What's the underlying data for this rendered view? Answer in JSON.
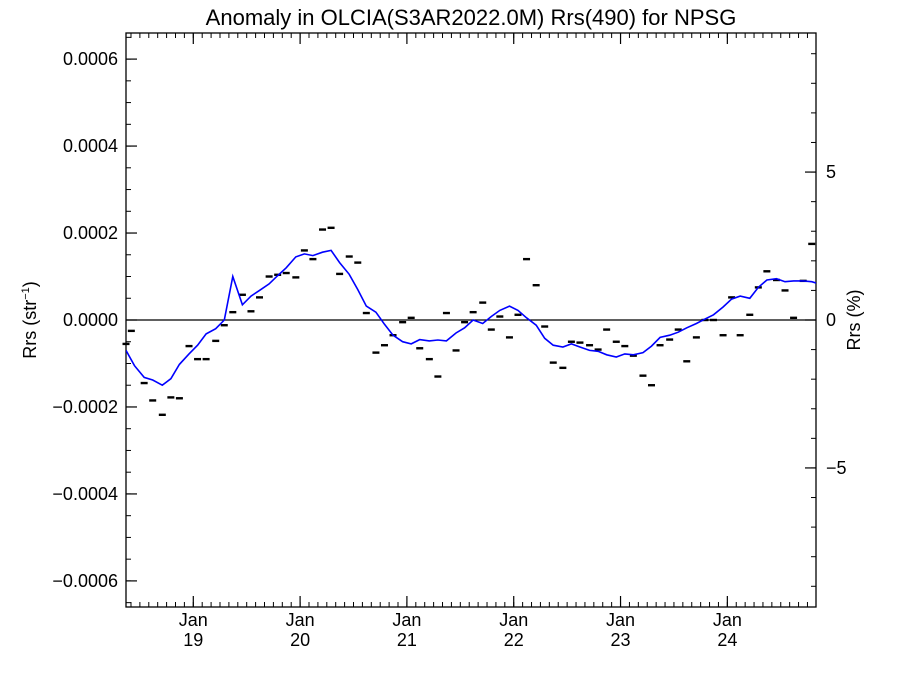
{
  "chart_data": {
    "type": "line",
    "title": "Anomaly in OLCIA(S3AR2022.0M) Rrs(490) for NPSG",
    "ylabel_left": {
      "base": "Rrs (str",
      "sup": "−1",
      "close": ")"
    },
    "ylabel_right": "Rrs (%)",
    "xlim": [
      2018.37,
      2024.83
    ],
    "ylim": [
      -0.00066,
      0.00066
    ],
    "y2lim": [
      -9.7,
      9.7
    ],
    "grid": false,
    "zero_line": true,
    "colors": {
      "line": "#0000ff",
      "points": "#000000",
      "axes": "#000000"
    },
    "x_ticks": [
      {
        "x": 2019.0,
        "top": "Jan",
        "bottom": "19"
      },
      {
        "x": 2020.0,
        "top": "Jan",
        "bottom": "20"
      },
      {
        "x": 2021.0,
        "top": "Jan",
        "bottom": "21"
      },
      {
        "x": 2022.0,
        "top": "Jan",
        "bottom": "22"
      },
      {
        "x": 2023.0,
        "top": "Jan",
        "bottom": "23"
      },
      {
        "x": 2024.0,
        "top": "Jan",
        "bottom": "24"
      }
    ],
    "y_ticks_left": [
      {
        "value": 0.0006,
        "label": "0.0006"
      },
      {
        "value": 0.0004,
        "label": "0.0004"
      },
      {
        "value": 0.0002,
        "label": "0.0002"
      },
      {
        "value": 0.0,
        "label": "0.0000"
      },
      {
        "value": -0.0002,
        "label": "−0.0002"
      },
      {
        "value": -0.0004,
        "label": "−0.0004"
      },
      {
        "value": -0.0006,
        "label": "−0.0006"
      }
    ],
    "y_ticks_right": [
      {
        "value": 5,
        "label": "5"
      },
      {
        "value": 0,
        "label": "0"
      },
      {
        "value": -5,
        "label": "−5"
      }
    ],
    "series": [
      {
        "kind": "points",
        "x": [
          2018.37,
          2018.42,
          2018.54,
          2018.62,
          2018.71,
          2018.79,
          2018.87,
          2018.96,
          2019.04,
          2019.12,
          2019.21,
          2019.29,
          2019.37,
          2019.46,
          2019.54,
          2019.62,
          2019.71,
          2019.79,
          2019.87,
          2019.96,
          2020.04,
          2020.12,
          2020.21,
          2020.29,
          2020.37,
          2020.46,
          2020.54,
          2020.62,
          2020.71,
          2020.79,
          2020.87,
          2020.96,
          2021.04,
          2021.12,
          2021.21,
          2021.29,
          2021.37,
          2021.46,
          2021.54,
          2021.62,
          2021.71,
          2021.79,
          2021.87,
          2021.96,
          2022.04,
          2022.12,
          2022.21,
          2022.29,
          2022.37,
          2022.46,
          2022.54,
          2022.62,
          2022.71,
          2022.79,
          2022.87,
          2022.96,
          2023.04,
          2023.12,
          2023.21,
          2023.29,
          2023.37,
          2023.46,
          2023.54,
          2023.62,
          2023.71,
          2023.79,
          2023.87,
          2023.96,
          2024.04,
          2024.12,
          2024.21,
          2024.29,
          2024.37,
          2024.46,
          2024.54,
          2024.62,
          2024.71,
          2024.79
        ],
        "y": [
          -5.5e-05,
          -2.5e-05,
          -0.000145,
          -0.000185,
          -0.000218,
          -0.000178,
          -0.00018,
          -6e-05,
          -9e-05,
          -9e-05,
          -4.8e-05,
          -1.2e-05,
          1.8e-05,
          5.8e-05,
          2e-05,
          5.2e-05,
          0.0001,
          0.000104,
          0.000108,
          9.8e-05,
          0.00016,
          0.00014,
          0.000208,
          0.000212,
          0.000106,
          0.000146,
          0.000132,
          1.6e-05,
          -7.5e-05,
          -5.8e-05,
          -3.5e-05,
          -5e-06,
          5e-06,
          -6.5e-05,
          -9e-05,
          -0.00013,
          1.6e-05,
          -7e-05,
          -5e-06,
          1.8e-05,
          4e-05,
          -2.2e-05,
          8e-06,
          -4e-05,
          1.2e-05,
          0.00014,
          8e-05,
          -1.5e-05,
          -9.8e-05,
          -0.00011,
          -5e-05,
          -5.2e-05,
          -5.8e-05,
          -6.8e-05,
          -2.2e-05,
          -5e-05,
          -6e-05,
          -8.2e-05,
          -0.000128,
          -0.00015,
          -5.8e-05,
          -4.5e-05,
          -2.2e-05,
          -9.5e-05,
          -4e-05,
          0.0,
          0.0,
          -3.5e-05,
          5.2e-05,
          -3.5e-05,
          1.2e-05,
          7.5e-05,
          0.000112,
          9.2e-05,
          6.8e-05,
          5e-06,
          9e-05,
          0.000175
        ]
      },
      {
        "kind": "line",
        "x": [
          2018.37,
          2018.45,
          2018.54,
          2018.62,
          2018.71,
          2018.79,
          2018.87,
          2018.96,
          2019.04,
          2019.12,
          2019.21,
          2019.29,
          2019.37,
          2019.46,
          2019.54,
          2019.62,
          2019.71,
          2019.79,
          2019.87,
          2019.96,
          2020.04,
          2020.12,
          2020.21,
          2020.29,
          2020.37,
          2020.46,
          2020.54,
          2020.62,
          2020.71,
          2020.79,
          2020.87,
          2020.96,
          2021.04,
          2021.12,
          2021.21,
          2021.29,
          2021.37,
          2021.46,
          2021.54,
          2021.62,
          2021.71,
          2021.79,
          2021.87,
          2021.96,
          2022.04,
          2022.12,
          2022.21,
          2022.29,
          2022.37,
          2022.46,
          2022.54,
          2022.62,
          2022.71,
          2022.79,
          2022.87,
          2022.96,
          2023.04,
          2023.12,
          2023.21,
          2023.29,
          2023.37,
          2023.46,
          2023.54,
          2023.62,
          2023.71,
          2023.79,
          2023.87,
          2023.96,
          2024.04,
          2024.12,
          2024.21,
          2024.29,
          2024.37,
          2024.46,
          2024.54,
          2024.62,
          2024.71,
          2024.79,
          2024.83
        ],
        "y": [
          -7e-05,
          -0.000105,
          -0.000132,
          -0.000138,
          -0.00015,
          -0.000135,
          -0.000102,
          -7.8e-05,
          -5.8e-05,
          -3.2e-05,
          -2e-05,
          0.0,
          0.0001,
          3.5e-05,
          5.5e-05,
          6.8e-05,
          8.3e-05,
          0.000102,
          0.00012,
          0.000145,
          0.000152,
          0.000148,
          0.000156,
          0.00016,
          0.000132,
          0.000105,
          7e-05,
          3.2e-05,
          1.8e-05,
          -1e-05,
          -3.5e-05,
          -5e-05,
          -5.5e-05,
          -4.5e-05,
          -4.8e-05,
          -4.6e-05,
          -4.8e-05,
          -3e-05,
          -1.8e-05,
          0.0,
          -8e-06,
          8e-06,
          2.2e-05,
          3.2e-05,
          2.2e-05,
          5e-06,
          -1.2e-05,
          -4.2e-05,
          -5.8e-05,
          -6.2e-05,
          -5.5e-05,
          -6.2e-05,
          -7e-05,
          -7.2e-05,
          -8e-05,
          -8.5e-05,
          -7.8e-05,
          -8e-05,
          -7.5e-05,
          -6e-05,
          -4e-05,
          -3.5e-05,
          -2.8e-05,
          -1.8e-05,
          -8e-06,
          2e-06,
          1.2e-05,
          3e-05,
          4.8e-05,
          5.5e-05,
          5e-05,
          7.5e-05,
          9.2e-05,
          9.5e-05,
          8.8e-05,
          9e-05,
          9e-05,
          8.8e-05,
          8.5e-05
        ]
      }
    ]
  }
}
